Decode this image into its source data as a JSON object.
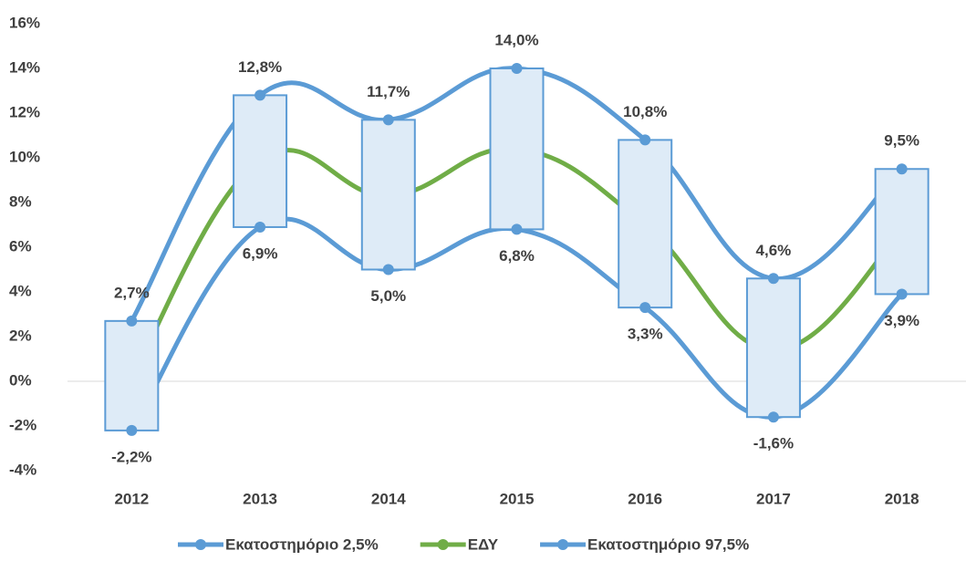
{
  "chart_data": {
    "type": "line",
    "categories": [
      "2012",
      "2013",
      "2014",
      "2015",
      "2016",
      "2017",
      "2018"
    ],
    "series": [
      {
        "name": "Εκατοστημόριο 2,5%",
        "color": "#5b9bd5",
        "values": [
          -2.2,
          6.9,
          5.0,
          6.8,
          3.3,
          -1.6,
          3.9
        ],
        "value_labels": [
          "-2,2%",
          "6,9%",
          "5,0%",
          "6,8%",
          "3,3%",
          "-1,6%",
          "3,9%"
        ],
        "label_position": "below"
      },
      {
        "name": "ΕΔΥ",
        "color": "#70ad47",
        "values": [
          0.2,
          9.9,
          8.3,
          10.4,
          7.0,
          1.4,
          6.7
        ]
      },
      {
        "name": "Εκατοστημόριο 97,5%",
        "color": "#5b9bd5",
        "values": [
          2.7,
          12.8,
          11.7,
          14.0,
          10.8,
          4.6,
          9.5
        ],
        "value_labels": [
          "2,7%",
          "12,8%",
          "11,7%",
          "14,0%",
          "10,8%",
          "4,6%",
          "9,5%"
        ],
        "label_position": "above"
      }
    ],
    "range_boxes": {
      "fill": "#deebf7",
      "stroke": "#5b9bd5"
    },
    "ylim": [
      -4,
      16
    ],
    "yticks": [
      {
        "value": -4,
        "label": "-4%"
      },
      {
        "value": -2,
        "label": "-2%"
      },
      {
        "value": 0,
        "label": "0%"
      },
      {
        "value": 2,
        "label": "2%"
      },
      {
        "value": 4,
        "label": "4%"
      },
      {
        "value": 6,
        "label": "6%"
      },
      {
        "value": 8,
        "label": "8%"
      },
      {
        "value": 10,
        "label": "10%"
      },
      {
        "value": 12,
        "label": "12%"
      },
      {
        "value": 14,
        "label": "14%"
      },
      {
        "value": 16,
        "label": "16%"
      }
    ],
    "legend": "bottom"
  }
}
